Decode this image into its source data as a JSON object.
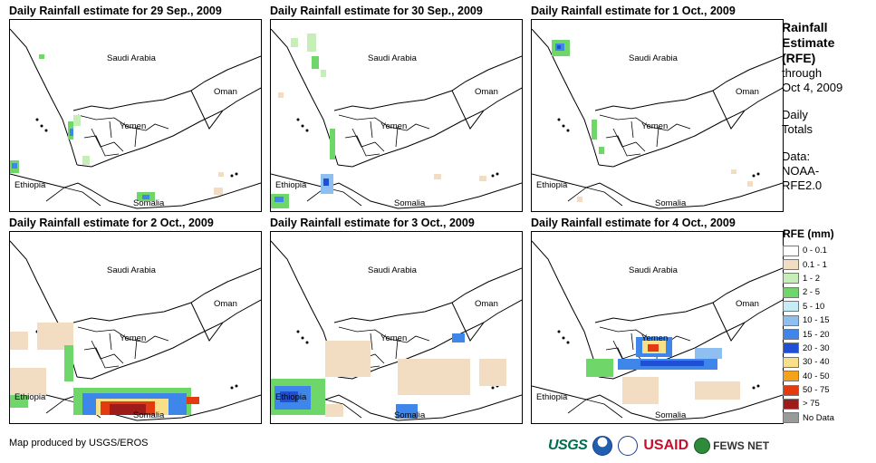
{
  "panels": [
    {
      "title": "Daily Rainfall estimate for 29 Sep., 2009"
    },
    {
      "title": "Daily Rainfall estimate for 30 Sep., 2009"
    },
    {
      "title": "Daily Rainfall estimate for 1 Oct., 2009"
    },
    {
      "title": "Daily Rainfall estimate for 2 Oct., 2009"
    },
    {
      "title": "Daily Rainfall estimate for 3 Oct., 2009"
    },
    {
      "title": "Daily Rainfall estimate for 4 Oct., 2009"
    }
  ],
  "map_labels": {
    "saudi_arabia": "Saudi Arabia",
    "oman": "Oman",
    "yemen": "Yemen",
    "ethiopia": "Ethiopia",
    "somalia": "Somalia"
  },
  "legend": {
    "title_line1": "Rainfall",
    "title_line2": "Estimate",
    "title_line3": "(RFE)",
    "through": "through",
    "date": "Oct 4, 2009",
    "daily": "Daily",
    "totals": "Totals",
    "data_label": "Data:",
    "source1": "NOAA-",
    "source2": "RFE2.0",
    "scale_title": "RFE (mm)",
    "items": [
      {
        "label": "0 - 0.1",
        "color": "#ffffff"
      },
      {
        "label": "0.1 - 1",
        "color": "#f2dcc2"
      },
      {
        "label": "1 - 2",
        "color": "#c6efb8"
      },
      {
        "label": "2 - 5",
        "color": "#6fd66a"
      },
      {
        "label": "5 - 10",
        "color": "#c6ecf7"
      },
      {
        "label": "10 - 15",
        "color": "#8fbff0"
      },
      {
        "label": "15 - 20",
        "color": "#3f86ea"
      },
      {
        "label": "20 - 30",
        "color": "#1f4fd6"
      },
      {
        "label": "30 - 40",
        "color": "#f8e08a"
      },
      {
        "label": "40 - 50",
        "color": "#f3a21a"
      },
      {
        "label": "50 - 75",
        "color": "#e43a10"
      },
      {
        "label": "> 75",
        "color": "#9e1b1b"
      },
      {
        "label": "No Data",
        "color": "#9a9a9a"
      }
    ]
  },
  "credit": "Map produced by USGS/EROS",
  "logos": {
    "usgs": "USGS",
    "usaid": "USAID",
    "fews": "FEWS NET"
  },
  "colors": {
    "tan": "#f2dcc2",
    "lightgreen": "#c6efb8",
    "green": "#6fd66a",
    "lightblue": "#c6ecf7",
    "blue": "#3f86ea",
    "darkblue": "#1f4fd6",
    "yellow": "#f8e08a",
    "orange": "#f3a21a",
    "red": "#e43a10",
    "darkred": "#9e1b1b"
  }
}
